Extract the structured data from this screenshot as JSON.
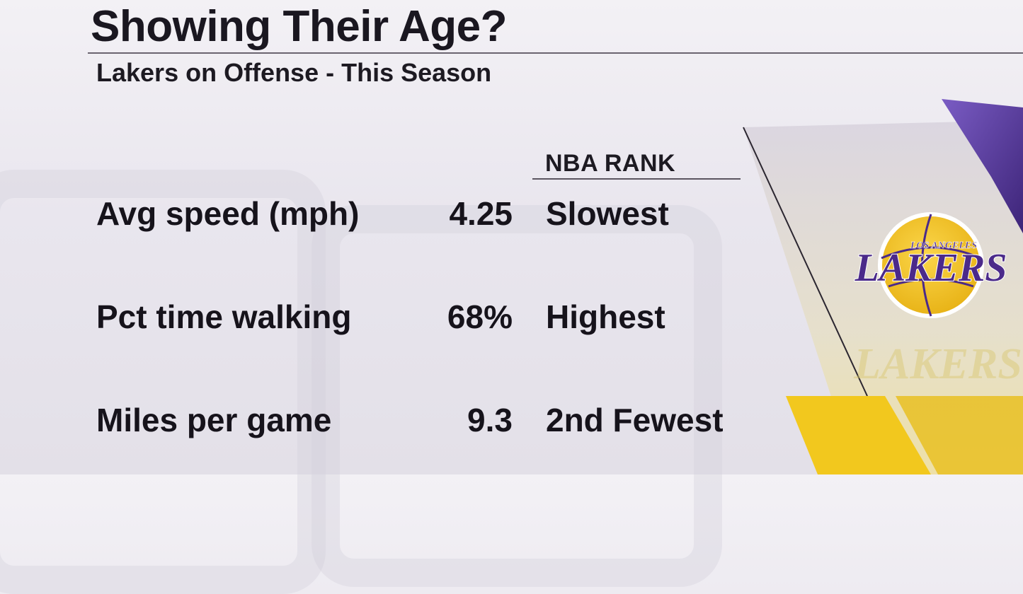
{
  "header": {
    "title": "Showing Their Age?",
    "subtitle": "Lakers on Offense - This Season"
  },
  "table": {
    "rank_column_header": "NBA RANK",
    "rows": [
      {
        "label": "Avg speed (mph)",
        "value": "4.25",
        "rank": "Slowest"
      },
      {
        "label": "Pct time walking",
        "value": "68%",
        "rank": "Highest"
      },
      {
        "label": "Miles per game",
        "value": "9.3",
        "rank": "2nd Fewest"
      }
    ]
  },
  "logo": {
    "top_text": "LOS ANGELES",
    "main_text": "LAKERS",
    "colors": {
      "gold": "#f2c12e",
      "purple": "#4b2a8a"
    }
  },
  "theme": {
    "background": "#ece9f0",
    "text": "#16131b",
    "accent_gold": "#f2c81e",
    "accent_purple": "#5a3aa0"
  }
}
